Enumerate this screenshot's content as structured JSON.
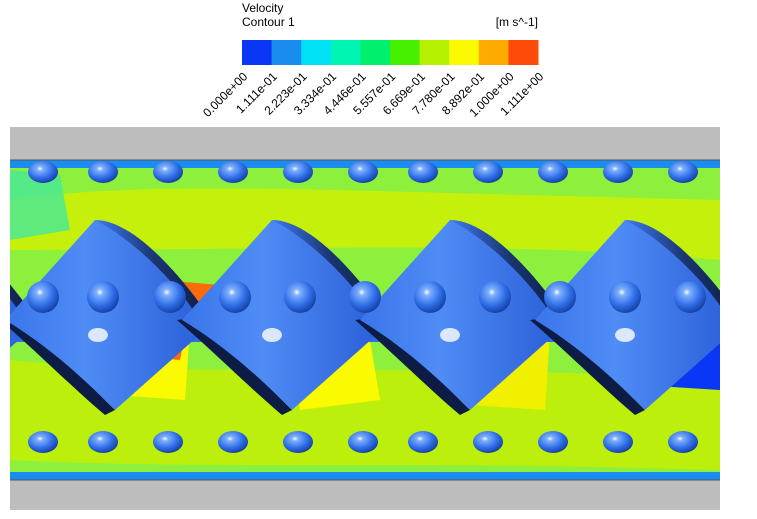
{
  "legend": {
    "title": "Velocity",
    "subtitle": "Contour 1",
    "unit": "[m s^-1]",
    "colors": [
      "#0a37f5",
      "#1a8cf0",
      "#00e1f5",
      "#00f5b4",
      "#00f06e",
      "#46f000",
      "#b4f000",
      "#fafa00",
      "#ffaa00",
      "#ff4b0a"
    ],
    "tick_labels": [
      "0.000e+00",
      "1.111e-01",
      "2.223e-01",
      "3.334e-01",
      "4.446e-01",
      "5.557e-01",
      "6.669e-01",
      "7.780e-01",
      "8.892e-01",
      "1.000e+00",
      "1.111e+00"
    ]
  }
}
